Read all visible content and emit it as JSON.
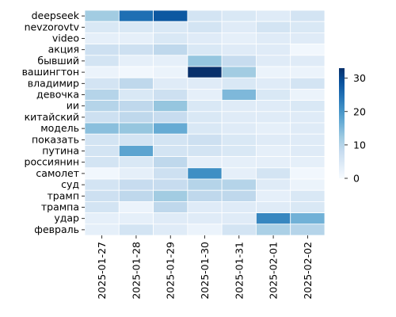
{
  "chart_data": {
    "type": "heatmap",
    "title": "",
    "xlabel": "",
    "ylabel": "",
    "columns": [
      "2025-01-27",
      "2025-01-28",
      "2025-01-29",
      "2025-01-30",
      "2025-01-31",
      "2025-02-01",
      "2025-02-02"
    ],
    "rows": [
      "deepseek",
      "nevzorovtv",
      "video",
      "акция",
      "бывший",
      "вашингтон",
      "владимир",
      "девочка",
      "ии",
      "китайский",
      "модель",
      "показать",
      "путина",
      "россиянин",
      "самолет",
      "суд",
      "трамп",
      "трампа",
      "удар",
      "февраль"
    ],
    "values": [
      [
        12,
        25,
        28,
        6,
        5,
        4,
        6
      ],
      [
        5,
        5,
        5,
        6,
        4,
        6,
        5
      ],
      [
        3,
        3,
        5,
        4,
        3,
        4,
        4
      ],
      [
        7,
        7,
        9,
        5,
        4,
        4,
        1
      ],
      [
        6,
        3,
        3,
        13,
        8,
        4,
        4
      ],
      [
        2,
        1,
        2,
        33,
        12,
        2,
        2
      ],
      [
        6,
        9,
        4,
        4,
        5,
        4,
        6
      ],
      [
        10,
        5,
        7,
        3,
        15,
        5,
        2
      ],
      [
        10,
        9,
        13,
        5,
        4,
        4,
        5
      ],
      [
        7,
        9,
        8,
        5,
        4,
        4,
        4
      ],
      [
        14,
        13,
        17,
        5,
        4,
        3,
        4
      ],
      [
        6,
        6,
        6,
        7,
        5,
        4,
        4
      ],
      [
        6,
        18,
        6,
        6,
        5,
        3,
        4
      ],
      [
        6,
        5,
        9,
        3,
        3,
        3,
        3
      ],
      [
        1,
        3,
        7,
        21,
        3,
        6,
        1
      ],
      [
        6,
        8,
        8,
        10,
        10,
        4,
        2
      ],
      [
        7,
        9,
        12,
        9,
        9,
        3,
        5
      ],
      [
        6,
        2,
        9,
        4,
        4,
        4,
        5
      ],
      [
        3,
        3,
        4,
        4,
        4,
        22,
        16
      ],
      [
        3,
        6,
        4,
        2,
        6,
        11,
        10
      ]
    ],
    "colorbar": {
      "min": 0,
      "max": 33,
      "ticks": [
        0,
        10,
        20,
        30
      ],
      "colormap": "Blues"
    },
    "colors": {
      "low": "#f7fbff",
      "high": "#08306b",
      "cell_border": "#ffffff"
    }
  }
}
